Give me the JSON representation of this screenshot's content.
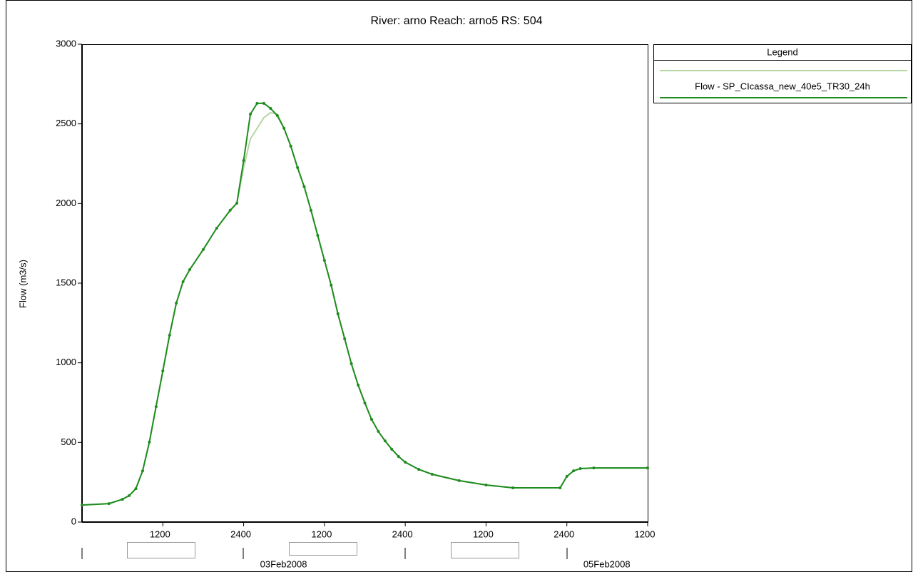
{
  "chart_data": {
    "type": "line",
    "title": "River: arno Reach: arno5 RS: 504",
    "ylabel": "Flow (m3/s)",
    "legend_title": "Legend",
    "legend": "right",
    "x": [
      0,
      4,
      6,
      7,
      8,
      9,
      10,
      11,
      12,
      13,
      14,
      15,
      16,
      18,
      20,
      22,
      23,
      24,
      25,
      26,
      27,
      28,
      29,
      30,
      31,
      32,
      33,
      34,
      35,
      36,
      37,
      38,
      39,
      40,
      41,
      42,
      43,
      44,
      45,
      46,
      47,
      48,
      50,
      52,
      56,
      60,
      64,
      71,
      72,
      73,
      74,
      76,
      84
    ],
    "series": [
      {
        "name": "Flow - SP_CIcassa_new_40e5_TR30_24h",
        "color": "#1e8c1e",
        "markers": true,
        "values": [
          107,
          116,
          143,
          166,
          210,
          322,
          502,
          725,
          949,
          1173,
          1375,
          1509,
          1585,
          1711,
          1845,
          1957,
          2002,
          2270,
          2561,
          2629,
          2629,
          2597,
          2552,
          2472,
          2360,
          2226,
          2105,
          1957,
          1800,
          1643,
          1487,
          1308,
          1151,
          994,
          860,
          748,
          645,
          569,
          510,
          457,
          412,
          376,
          331,
          300,
          260,
          233,
          215,
          215,
          287,
          322,
          336,
          340,
          340
        ]
      },
      {
        "color": "#b5d5a5",
        "markers": false,
        "values": [
          107,
          116,
          143,
          166,
          210,
          322,
          502,
          725,
          949,
          1173,
          1375,
          1509,
          1585,
          1711,
          1845,
          1957,
          2002,
          2226,
          2405,
          2472,
          2539,
          2570,
          2561,
          2472,
          2360,
          2226,
          2105,
          1957,
          1800,
          1643,
          1487,
          1308,
          1151,
          994,
          860,
          748,
          645,
          569,
          510,
          457,
          412,
          376,
          331,
          300,
          260,
          233,
          215,
          215,
          287,
          322,
          336,
          340,
          340
        ]
      }
    ],
    "xlim": [
      0,
      84
    ],
    "xticks": [
      {
        "value": 12,
        "label": "1200"
      },
      {
        "value": 24,
        "label": "2400"
      },
      {
        "value": 36,
        "label": "1200"
      },
      {
        "value": 48,
        "label": "2400"
      },
      {
        "value": 60,
        "label": "1200"
      },
      {
        "value": 72,
        "label": "2400"
      },
      {
        "value": 84,
        "label": "1200"
      }
    ],
    "date_labels": [
      {
        "value": 24,
        "label": "03Feb2008"
      },
      {
        "value": 72,
        "label": "05Feb2008"
      }
    ],
    "ylim": [
      0,
      3000
    ],
    "yticks": [
      0,
      500,
      1000,
      1500,
      2000,
      2500,
      3000
    ],
    "grid": false
  }
}
